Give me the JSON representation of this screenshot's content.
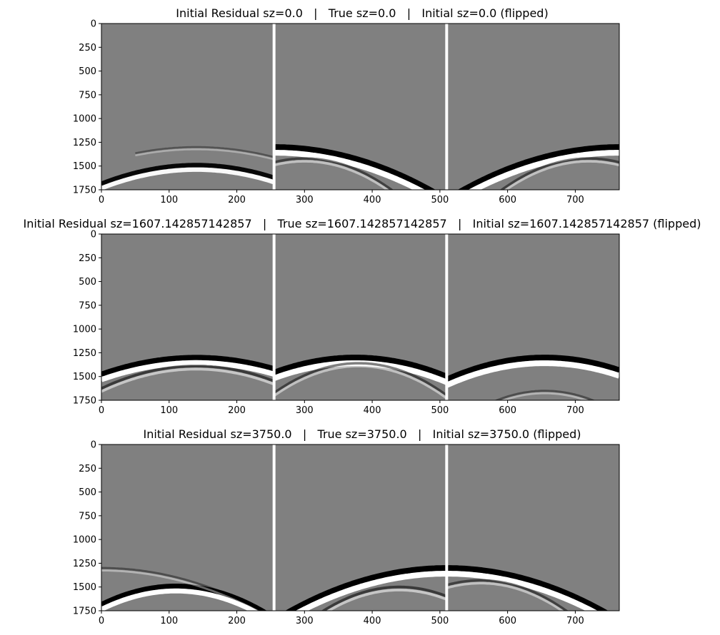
{
  "figure": {
    "panels": [
      {
        "title": "Initial Residual sz=0.0   |   True sz=0.0   |   Initial sz=0.0 (flipped)"
      },
      {
        "title": "Initial Residual sz=1607.142857142857   |   True sz=1607.142857142857   |   Initial sz=1607.142857142857 (flipped)"
      },
      {
        "title": "Initial Residual sz=3750.0   |   True sz=3750.0   |   Initial sz=3750.0 (flipped)"
      }
    ]
  },
  "chart_data": [
    {
      "type": "heatmap",
      "title": "Initial Residual sz=0.0   |   True sz=0.0   |   Initial sz=0.0 (flipped)",
      "colormap": "gray",
      "background": "#808080",
      "xlim": [
        0,
        765
      ],
      "ylim": [
        1750,
        0
      ],
      "xticks": [
        0,
        100,
        200,
        300,
        400,
        500,
        600,
        700
      ],
      "yticks": [
        0,
        250,
        500,
        750,
        1000,
        1250,
        1500,
        1750
      ],
      "separators": [
        255,
        510
      ],
      "arrivals": [
        {
          "apex_x": 140,
          "apex_y": 1490,
          "x_range": [
            0,
            255
          ],
          "curvature": 0.01,
          "strength": 0.7
        },
        {
          "apex_x": 140,
          "apex_y": 1300,
          "x_range": [
            50,
            255
          ],
          "curvature": 0.008,
          "strength": 0.1
        },
        {
          "apex_x": 255,
          "apex_y": 1300,
          "x_range": [
            255,
            510
          ],
          "curvature": 0.0085,
          "strength": 1.0
        },
        {
          "apex_x": 300,
          "apex_y": 1420,
          "x_range": [
            255,
            510
          ],
          "curvature": 0.02,
          "strength": 0.25
        },
        {
          "apex_x": 765,
          "apex_y": 1300,
          "x_range": [
            510,
            765
          ],
          "curvature": 0.0085,
          "strength": 1.0
        },
        {
          "apex_x": 720,
          "apex_y": 1420,
          "x_range": [
            510,
            765
          ],
          "curvature": 0.02,
          "strength": 0.25
        }
      ]
    },
    {
      "type": "heatmap",
      "title": "Initial Residual sz=1607.142857142857   |   True sz=1607.142857142857   |   Initial sz=1607.142857142857 (flipped)",
      "colormap": "gray",
      "background": "#808080",
      "xlim": [
        0,
        765
      ],
      "ylim": [
        1750,
        0
      ],
      "xticks": [
        0,
        100,
        200,
        300,
        400,
        500,
        600,
        700
      ],
      "yticks": [
        0,
        250,
        500,
        750,
        1000,
        1250,
        1500,
        1750
      ],
      "separators": [
        255,
        510
      ],
      "arrivals": [
        {
          "apex_x": 140,
          "apex_y": 1300,
          "x_range": [
            0,
            255
          ],
          "curvature": 0.009,
          "strength": 0.9
        },
        {
          "apex_x": 140,
          "apex_y": 1390,
          "x_range": [
            0,
            255
          ],
          "curvature": 0.012,
          "strength": 0.3
        },
        {
          "apex_x": 375,
          "apex_y": 1300,
          "x_range": [
            255,
            510
          ],
          "curvature": 0.011,
          "strength": 1.0
        },
        {
          "apex_x": 380,
          "apex_y": 1360,
          "x_range": [
            255,
            510
          ],
          "curvature": 0.02,
          "strength": 0.25
        },
        {
          "apex_x": 655,
          "apex_y": 1300,
          "x_range": [
            510,
            765
          ],
          "curvature": 0.011,
          "strength": 1.0
        },
        {
          "apex_x": 655,
          "apex_y": 1650,
          "x_range": [
            510,
            765
          ],
          "curvature": 0.02,
          "strength": 0.15
        }
      ]
    },
    {
      "type": "heatmap",
      "title": "Initial Residual sz=3750.0   |   True sz=3750.0   |   Initial sz=3750.0 (flipped)",
      "colormap": "gray",
      "background": "#808080",
      "xlim": [
        0,
        765
      ],
      "ylim": [
        1750,
        0
      ],
      "xticks": [
        0,
        100,
        200,
        300,
        400,
        500,
        600,
        700
      ],
      "yticks": [
        0,
        250,
        500,
        750,
        1000,
        1250,
        1500,
        1750
      ],
      "separators": [
        255,
        510
      ],
      "arrivals": [
        {
          "apex_x": 110,
          "apex_y": 1490,
          "x_range": [
            0,
            255
          ],
          "curvature": 0.016,
          "strength": 0.8
        },
        {
          "apex_x": 0,
          "apex_y": 1300,
          "x_range": [
            0,
            255
          ],
          "curvature": 0.008,
          "strength": 0.15
        },
        {
          "apex_x": 510,
          "apex_y": 1300,
          "x_range": [
            255,
            510
          ],
          "curvature": 0.0085,
          "strength": 1.0
        },
        {
          "apex_x": 440,
          "apex_y": 1500,
          "x_range": [
            255,
            510
          ],
          "curvature": 0.02,
          "strength": 0.3
        },
        {
          "apex_x": 510,
          "apex_y": 1300,
          "x_range": [
            510,
            765
          ],
          "curvature": 0.0085,
          "strength": 1.0
        },
        {
          "apex_x": 560,
          "apex_y": 1430,
          "x_range": [
            510,
            765
          ],
          "curvature": 0.02,
          "strength": 0.25
        }
      ]
    }
  ]
}
